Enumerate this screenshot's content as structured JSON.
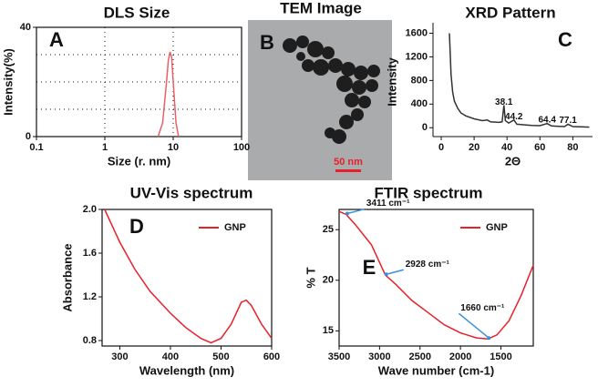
{
  "chart_data": [
    {
      "type": "line",
      "title": "DLS Size",
      "panel_label": "A",
      "xlabel": "Size (r. nm)",
      "ylabel": "Intensity(%)",
      "xscale": "log",
      "xlim": [
        0.1,
        100
      ],
      "xticks": [
        0.1,
        1,
        10,
        100
      ],
      "ylim": [
        0,
        40
      ],
      "yticks": [
        0,
        40
      ],
      "minor_yticks": [
        10,
        20,
        30
      ],
      "grid": "dotted",
      "frame": true,
      "x": [
        6,
        7,
        8,
        8.5,
        9,
        9.5,
        10,
        11,
        12
      ],
      "series": [
        {
          "color": "#e8606a",
          "values": [
            0,
            5,
            20,
            28,
            31,
            29,
            20,
            5,
            0
          ]
        }
      ]
    },
    {
      "type": "line",
      "title": "XRD Pattern",
      "panel_label": "C",
      "xlabel": "2Θ",
      "ylabel": "Intensity",
      "xlim": [
        -5,
        92
      ],
      "xticks": [
        0,
        20,
        40,
        60,
        80
      ],
      "ylim": [
        -150,
        1700
      ],
      "yticks": [
        0,
        400,
        800,
        1200,
        1600
      ],
      "frame": false,
      "x": [
        5,
        6,
        7,
        8,
        10,
        12,
        15,
        20,
        25,
        28,
        30,
        35,
        37,
        38.1,
        39,
        41,
        44.2,
        46,
        50,
        55,
        60,
        64.4,
        67,
        70,
        75,
        77.1,
        80,
        85,
        90
      ],
      "series": [
        {
          "color": "#333333",
          "values": [
            1600,
            900,
            600,
            450,
            330,
            250,
            200,
            150,
            120,
            130,
            100,
            90,
            100,
            380,
            120,
            80,
            130,
            60,
            50,
            40,
            35,
            70,
            30,
            25,
            20,
            60,
            20,
            15,
            10
          ]
        }
      ],
      "annotations": [
        {
          "x": 38.1,
          "y": 430,
          "label": "38.1"
        },
        {
          "x": 44.2,
          "y": 180,
          "label": "44.2"
        },
        {
          "x": 64.4,
          "y": 130,
          "label": "64.4"
        },
        {
          "x": 77.1,
          "y": 120,
          "label": "77.1"
        }
      ]
    },
    {
      "type": "line",
      "title": "UV-Vis spectrum",
      "panel_label": "D",
      "xlabel": "Wavelength (nm)",
      "ylabel": "Absorbance",
      "xlim": [
        265,
        600
      ],
      "xticks": [
        300,
        400,
        500,
        600
      ],
      "ylim": [
        0.75,
        2.0
      ],
      "yticks": [
        0.8,
        1.2,
        1.6,
        {
          "value": 2,
          "label": "2.0"
        }
      ],
      "frame": true,
      "x": [
        270,
        300,
        330,
        360,
        400,
        430,
        460,
        480,
        500,
        520,
        540,
        550,
        560,
        580,
        600
      ],
      "series": [
        {
          "name": "GNP",
          "color": "#e8202a",
          "values": [
            2.0,
            1.7,
            1.45,
            1.25,
            1.05,
            0.92,
            0.82,
            0.78,
            0.82,
            0.95,
            1.15,
            1.17,
            1.12,
            0.95,
            0.82
          ]
        }
      ]
    },
    {
      "type": "line",
      "title": "FTIR spectrum",
      "panel_label": "E",
      "xlabel": "Wave number (cm-1)",
      "ylabel": "% T",
      "xlim": [
        3500,
        1100
      ],
      "xticks": [
        3500,
        3000,
        2500,
        2000,
        1500
      ],
      "ylim": [
        13.5,
        27
      ],
      "yticks": [
        15,
        20,
        25
      ],
      "frame": true,
      "x": [
        3500,
        3411,
        3300,
        3100,
        2928,
        2800,
        2600,
        2400,
        2200,
        2000,
        1800,
        1660,
        1550,
        1400,
        1250,
        1100
      ],
      "series": [
        {
          "name": "GNP",
          "color": "#e8202a",
          "values": [
            26.8,
            26.5,
            25.5,
            23.5,
            20.5,
            19.6,
            18,
            16.8,
            15.6,
            14.8,
            14.3,
            14.2,
            14.6,
            16,
            18.5,
            21.5
          ]
        }
      ],
      "annotations": [
        {
          "x": 3411,
          "y": 26.5,
          "label": "3411 cm⁻¹"
        },
        {
          "x": 2928,
          "y": 20.5,
          "label": "2928 cm⁻¹"
        },
        {
          "x": 1660,
          "y": 14.2,
          "label": "1660 cm⁻¹"
        }
      ]
    }
  ],
  "image_panel": {
    "title": "TEM Image",
    "label": "B",
    "scale_bar": "50 nm"
  }
}
